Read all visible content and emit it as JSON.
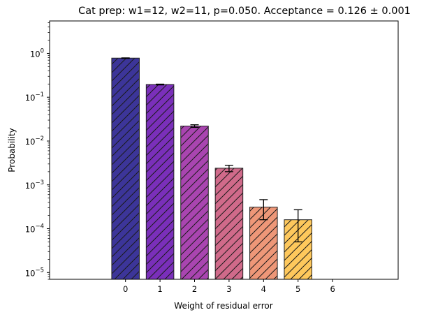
{
  "chart_data": {
    "type": "bar",
    "title": "Cat prep: w1=12, w2=11, p=0.050. Acceptance = 0.126 ± 0.001",
    "xlabel": "Weight of residual error",
    "ylabel": "Probability",
    "yscale": "log",
    "x": [
      0,
      1,
      2,
      3,
      4,
      5,
      6
    ],
    "categories": [
      "0",
      "1",
      "2",
      "3",
      "4",
      "5",
      "6"
    ],
    "values": [
      0.78,
      0.195,
      0.022,
      0.0024,
      0.00031,
      0.00016,
      null
    ],
    "errors": [
      0.01,
      0.004,
      0.0015,
      0.0004,
      0.00015,
      0.00011,
      null
    ],
    "bar_colors": [
      "#3c3599",
      "#7a2fba",
      "#a945b0",
      "#d06a8a",
      "#ee9778",
      "#fec85c"
    ],
    "hatch": "diagonal",
    "xlim": [
      -2.2,
      7.9
    ],
    "ylim": [
      7e-06,
      5.5
    ],
    "yticks": [
      1e-05,
      0.0001,
      0.001,
      0.01,
      0.1,
      1
    ],
    "ytick_labels": [
      {
        "base": "10",
        "exp": "−5"
      },
      {
        "base": "10",
        "exp": "−4"
      },
      {
        "base": "10",
        "exp": "−3"
      },
      {
        "base": "10",
        "exp": "−2"
      },
      {
        "base": "10",
        "exp": "−1"
      },
      {
        "base": "10",
        "exp": "0"
      }
    ],
    "grid": false
  }
}
